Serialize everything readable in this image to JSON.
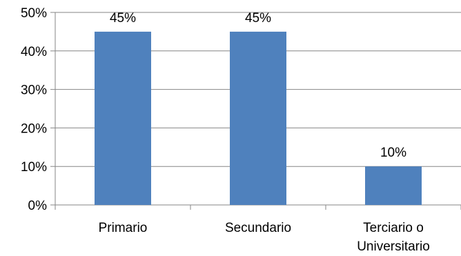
{
  "chart_data": {
    "type": "bar",
    "categories": [
      [
        "Primario"
      ],
      [
        "Secundario"
      ],
      [
        "Terciario o",
        "Universitario"
      ]
    ],
    "values": [
      45,
      45,
      10
    ],
    "data_labels": [
      "45%",
      "45%",
      "10%"
    ],
    "ylim": [
      0,
      50
    ],
    "yticks": [
      0,
      10,
      20,
      30,
      40,
      50
    ],
    "ytick_labels": [
      "0%",
      "10%",
      "20%",
      "30%",
      "40%",
      "50%"
    ],
    "grid": true,
    "legend": "none",
    "colors": {
      "bar": "#4f81bd",
      "grid": "#868686",
      "axis": "#868686"
    }
  }
}
